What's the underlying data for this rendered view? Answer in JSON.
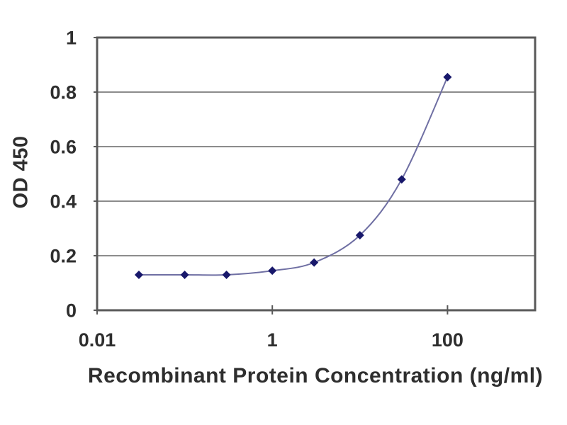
{
  "figure": {
    "background_color": "#ffffff",
    "text_color": "#2e2e2e",
    "frame_color": "#595959",
    "grid_color": "#8c8c8c"
  },
  "chart_data": {
    "type": "line",
    "title": "",
    "xlabel": "Recombinant Protein Concentration (ng/ml)",
    "ylabel": "OD 450",
    "x_scale": "log",
    "y_scale": "linear",
    "xlim": [
      0.01,
      1000
    ],
    "ylim": [
      0,
      1
    ],
    "grid": "horizontal",
    "legend_position": "none",
    "xticks": [
      {
        "value": 0.01,
        "label": "0.01"
      },
      {
        "value": 1,
        "label": "1"
      },
      {
        "value": 100,
        "label": "100"
      }
    ],
    "yticks": [
      {
        "value": 0,
        "label": "0"
      },
      {
        "value": 0.2,
        "label": "0.2"
      },
      {
        "value": 0.4,
        "label": "0.4"
      },
      {
        "value": 0.6,
        "label": "0.6"
      },
      {
        "value": 0.8,
        "label": "0.8"
      },
      {
        "value": 1,
        "label": "1"
      }
    ],
    "series": [
      {
        "marker": "diamond",
        "smooth": true,
        "line_color": "#6f6fa3",
        "marker_color": "#18186b",
        "points": [
          {
            "x": 0.03,
            "y": 0.13
          },
          {
            "x": 0.1,
            "y": 0.13
          },
          {
            "x": 0.3,
            "y": 0.13
          },
          {
            "x": 1,
            "y": 0.145
          },
          {
            "x": 3,
            "y": 0.175
          },
          {
            "x": 10,
            "y": 0.275
          },
          {
            "x": 30,
            "y": 0.48
          },
          {
            "x": 100,
            "y": 0.855
          }
        ]
      }
    ]
  }
}
